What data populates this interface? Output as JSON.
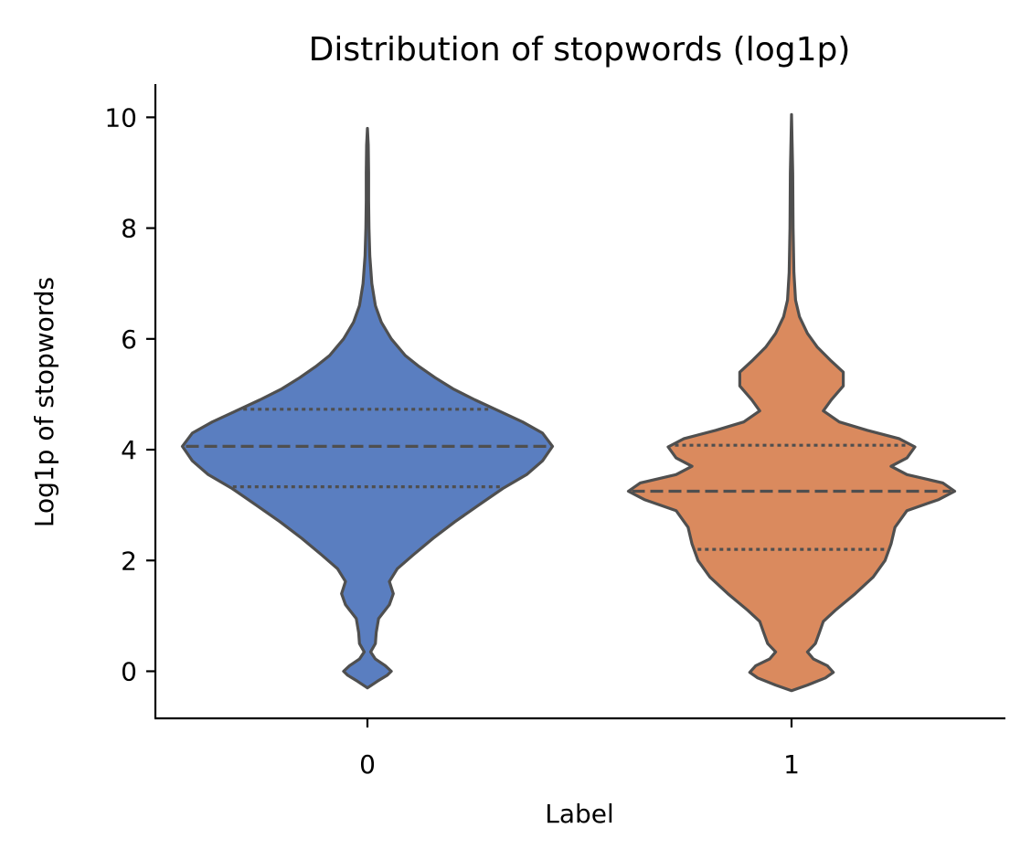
{
  "chart_data": {
    "type": "violin",
    "title": "Distribution of stopwords (log1p)",
    "xlabel": "Label",
    "ylabel": "Log1p of stopwords",
    "categories": [
      "0",
      "1"
    ],
    "ylim": [
      -0.85,
      10.6
    ],
    "yticks": [
      0,
      2,
      4,
      6,
      8,
      10
    ],
    "grid": false,
    "legend": "none",
    "violins": [
      {
        "category": "0",
        "color": "#5a7ec0",
        "edge_color": "#4f4f4f",
        "q1": 3.33,
        "median": 4.06,
        "q3": 4.73,
        "min": -0.3,
        "max": 9.8,
        "density_profile": [
          [
            -0.3,
            0.0
          ],
          [
            -0.18,
            0.025
          ],
          [
            -0.07,
            0.05
          ],
          [
            0.0,
            0.06
          ],
          [
            0.1,
            0.045
          ],
          [
            0.22,
            0.02
          ],
          [
            0.35,
            0.008
          ],
          [
            0.5,
            0.02
          ],
          [
            0.7,
            0.022
          ],
          [
            0.95,
            0.028
          ],
          [
            1.2,
            0.055
          ],
          [
            1.4,
            0.065
          ],
          [
            1.62,
            0.055
          ],
          [
            1.85,
            0.075
          ],
          [
            2.1,
            0.115
          ],
          [
            2.4,
            0.165
          ],
          [
            2.7,
            0.22
          ],
          [
            3.0,
            0.28
          ],
          [
            3.3,
            0.34
          ],
          [
            3.55,
            0.4
          ],
          [
            3.8,
            0.44
          ],
          [
            4.06,
            0.465
          ],
          [
            4.3,
            0.44
          ],
          [
            4.5,
            0.39
          ],
          [
            4.7,
            0.33
          ],
          [
            4.9,
            0.27
          ],
          [
            5.1,
            0.215
          ],
          [
            5.3,
            0.17
          ],
          [
            5.5,
            0.13
          ],
          [
            5.7,
            0.095
          ],
          [
            6.0,
            0.06
          ],
          [
            6.3,
            0.035
          ],
          [
            6.6,
            0.02
          ],
          [
            7.0,
            0.011
          ],
          [
            7.5,
            0.006
          ],
          [
            8.0,
            0.004
          ],
          [
            8.5,
            0.003
          ],
          [
            9.0,
            0.003
          ],
          [
            9.5,
            0.002
          ],
          [
            9.8,
            0.0
          ]
        ]
      },
      {
        "category": "1",
        "color": "#da8a5e",
        "edge_color": "#4f4f4f",
        "q1": 2.2,
        "median": 3.25,
        "q3": 4.08,
        "min": -0.35,
        "max": 10.05,
        "density_profile": [
          [
            -0.35,
            0.0
          ],
          [
            -0.25,
            0.04
          ],
          [
            -0.12,
            0.085
          ],
          [
            -0.02,
            0.105
          ],
          [
            0.1,
            0.09
          ],
          [
            0.22,
            0.055
          ],
          [
            0.35,
            0.04
          ],
          [
            0.5,
            0.06
          ],
          [
            0.7,
            0.07
          ],
          [
            0.9,
            0.08
          ],
          [
            1.1,
            0.11
          ],
          [
            1.4,
            0.16
          ],
          [
            1.7,
            0.205
          ],
          [
            2.0,
            0.235
          ],
          [
            2.3,
            0.25
          ],
          [
            2.6,
            0.26
          ],
          [
            2.9,
            0.29
          ],
          [
            3.1,
            0.37
          ],
          [
            3.25,
            0.41
          ],
          [
            3.4,
            0.38
          ],
          [
            3.55,
            0.29
          ],
          [
            3.7,
            0.25
          ],
          [
            3.85,
            0.29
          ],
          [
            4.05,
            0.31
          ],
          [
            4.2,
            0.27
          ],
          [
            4.35,
            0.19
          ],
          [
            4.5,
            0.12
          ],
          [
            4.7,
            0.08
          ],
          [
            4.9,
            0.1
          ],
          [
            5.15,
            0.13
          ],
          [
            5.4,
            0.13
          ],
          [
            5.6,
            0.1
          ],
          [
            5.85,
            0.065
          ],
          [
            6.1,
            0.04
          ],
          [
            6.4,
            0.02
          ],
          [
            6.7,
            0.01
          ],
          [
            7.2,
            0.006
          ],
          [
            8.0,
            0.004
          ],
          [
            9.0,
            0.003
          ],
          [
            10.05,
            0.0
          ]
        ]
      }
    ]
  }
}
